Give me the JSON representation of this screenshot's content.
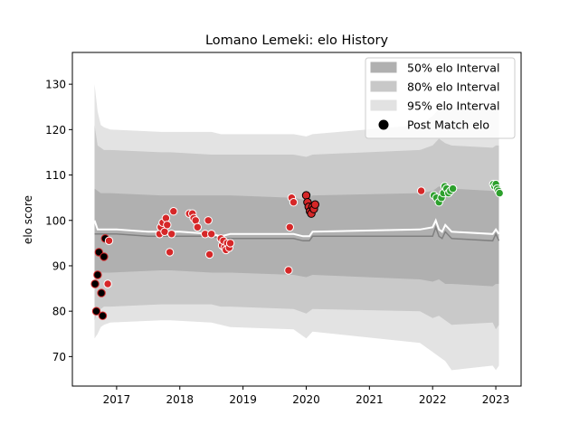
{
  "chart_data": {
    "type": "scatter",
    "title": "Lomano Lemeki: elo History",
    "xlabel": "",
    "ylabel": "elo score",
    "xlim": [
      2016.3,
      2023.4
    ],
    "ylim": [
      63.5,
      137.0
    ],
    "xticks": [
      {
        "value": 2017.0,
        "label": "2017"
      },
      {
        "value": 2018.0,
        "label": "2018"
      },
      {
        "value": 2019.0,
        "label": "2019"
      },
      {
        "value": 2020.0,
        "label": "2020"
      },
      {
        "value": 2021.0,
        "label": "2021"
      },
      {
        "value": 2022.0,
        "label": "2022"
      },
      {
        "value": 2023.0,
        "label": "2023"
      }
    ],
    "yticks": [
      {
        "value": 70,
        "label": "70"
      },
      {
        "value": 80,
        "label": "80"
      },
      {
        "value": 90,
        "label": "90"
      },
      {
        "value": 100,
        "label": "100"
      },
      {
        "value": 110,
        "label": "110"
      },
      {
        "value": 120,
        "label": "120"
      },
      {
        "value": 130,
        "label": "130"
      }
    ],
    "grid": false,
    "legend_position": "top-right",
    "legend": [
      {
        "label": "50% elo Interval",
        "kind": "patch",
        "color": "#b0b0b0"
      },
      {
        "label": "80% elo Interval",
        "kind": "patch",
        "color": "#c8c8c8"
      },
      {
        "label": "95% elo Interval",
        "kind": "patch",
        "color": "#e2e2e2"
      },
      {
        "label": "Post Match elo",
        "kind": "marker",
        "color": "#000000"
      }
    ],
    "colors": {
      "band50": "#b0b0b0",
      "band80": "#c9c9c9",
      "band95": "#e3e3e3",
      "mean_line": "#ffffff",
      "median_line": "#808080",
      "marker_edge": "#ffffff"
    },
    "series": [
      {
        "kind": "band",
        "level": "95%",
        "x": [
          2016.65,
          2016.7,
          2016.75,
          2016.8,
          2016.9,
          2017.7,
          2017.85,
          2018.5,
          2018.65,
          2018.8,
          2019.8,
          2020.0,
          2020.1,
          2021.8,
          2022.0,
          2022.1,
          2022.2,
          2022.3,
          2022.95,
          2023.0,
          2023.05
        ],
        "lower": [
          74.0,
          75.0,
          76.5,
          77.0,
          77.5,
          78.0,
          78.0,
          77.5,
          77.0,
          76.5,
          76.0,
          74.0,
          75.5,
          73.0,
          71.0,
          70.0,
          69.0,
          67.0,
          68.0,
          67.0,
          68.0
        ],
        "upper": [
          130.0,
          124.0,
          121.0,
          120.5,
          120.0,
          119.5,
          119.5,
          119.5,
          119.0,
          119.0,
          119.0,
          118.5,
          119.0,
          121.0,
          123.0,
          124.5,
          125.0,
          125.0,
          124.5,
          125.0,
          125.0
        ]
      },
      {
        "kind": "band",
        "level": "80%",
        "x": [
          2016.65,
          2016.7,
          2016.75,
          2016.8,
          2016.9,
          2017.7,
          2017.85,
          2018.5,
          2018.65,
          2018.8,
          2019.8,
          2020.0,
          2020.1,
          2021.8,
          2022.0,
          2022.1,
          2022.2,
          2022.3,
          2022.95,
          2023.0,
          2023.05
        ],
        "lower": [
          78.0,
          80.0,
          80.5,
          81.0,
          81.0,
          81.5,
          81.5,
          81.5,
          81.0,
          81.0,
          80.5,
          79.5,
          80.5,
          80.0,
          78.5,
          79.0,
          78.0,
          77.0,
          77.5,
          76.0,
          77.0
        ],
        "upper": [
          121.0,
          116.5,
          116.0,
          115.5,
          115.5,
          115.0,
          115.0,
          114.5,
          114.5,
          114.5,
          114.5,
          114.0,
          114.5,
          115.5,
          116.5,
          118.0,
          117.0,
          116.5,
          116.0,
          116.5,
          116.5
        ]
      },
      {
        "kind": "band",
        "level": "50%",
        "x": [
          2016.65,
          2016.7,
          2016.75,
          2016.8,
          2016.9,
          2017.7,
          2017.85,
          2018.5,
          2018.65,
          2018.8,
          2019.8,
          2020.0,
          2020.1,
          2021.8,
          2022.0,
          2022.1,
          2022.2,
          2022.3,
          2022.95,
          2023.0,
          2023.05
        ],
        "lower": [
          88.0,
          88.5,
          88.5,
          88.5,
          88.5,
          89.0,
          89.0,
          88.5,
          88.5,
          88.5,
          88.0,
          87.5,
          88.0,
          87.0,
          86.5,
          87.0,
          86.0,
          86.0,
          85.5,
          86.0,
          86.0
        ],
        "upper": [
          107.0,
          106.5,
          106.0,
          106.0,
          106.0,
          105.5,
          105.5,
          105.5,
          105.5,
          105.5,
          105.0,
          104.5,
          105.5,
          106.0,
          106.5,
          107.5,
          107.0,
          107.0,
          106.5,
          107.0,
          107.0
        ]
      },
      {
        "kind": "line",
        "role": "mean",
        "x": [
          2016.65,
          2016.7,
          2017.0,
          2017.5,
          2017.7,
          2017.85,
          2018.0,
          2018.5,
          2018.65,
          2018.8,
          2019.8,
          2019.95,
          2020.05,
          2020.1,
          2021.8,
          2022.0,
          2022.05,
          2022.1,
          2022.15,
          2022.2,
          2022.3,
          2022.95,
          2023.0,
          2023.05
        ],
        "y": [
          100.0,
          98.0,
          98.0,
          97.5,
          97.5,
          97.5,
          97.5,
          97.0,
          96.5,
          97.0,
          97.0,
          96.5,
          96.5,
          97.5,
          98.0,
          98.5,
          100.0,
          98.0,
          97.5,
          99.0,
          97.5,
          97.0,
          98.0,
          97.0
        ]
      },
      {
        "kind": "line",
        "role": "median",
        "x": [
          2016.65,
          2016.7,
          2017.0,
          2017.5,
          2017.7,
          2017.85,
          2018.0,
          2018.5,
          2018.65,
          2018.8,
          2019.8,
          2019.95,
          2020.05,
          2020.1,
          2021.8,
          2022.0,
          2022.05,
          2022.1,
          2022.15,
          2022.2,
          2022.3,
          2022.95,
          2023.0,
          2023.05
        ],
        "y": [
          97.0,
          97.0,
          97.0,
          96.5,
          96.5,
          96.5,
          96.5,
          96.5,
          96.0,
          96.0,
          96.0,
          95.5,
          95.5,
          96.5,
          96.5,
          96.5,
          98.5,
          96.5,
          96.0,
          97.5,
          96.0,
          95.5,
          97.0,
          95.5
        ]
      },
      {
        "kind": "points",
        "name": "Post Match elo",
        "points": [
          {
            "x": 2016.66,
            "y": 86.0,
            "color": "#000000",
            "edge": "#d62728"
          },
          {
            "x": 2016.68,
            "y": 80.0,
            "color": "#000000",
            "edge": "#d62728"
          },
          {
            "x": 2016.7,
            "y": 88.0,
            "color": "#000000",
            "edge": "#d62728"
          },
          {
            "x": 2016.72,
            "y": 93.0,
            "color": "#000000",
            "edge": "#d62728"
          },
          {
            "x": 2016.76,
            "y": 84.0,
            "color": "#000000",
            "edge": "#d62728"
          },
          {
            "x": 2016.78,
            "y": 79.0,
            "color": "#000000",
            "edge": "#d62728"
          },
          {
            "x": 2016.8,
            "y": 92.0,
            "color": "#000000",
            "edge": "#d62728"
          },
          {
            "x": 2016.82,
            "y": 96.0,
            "color": "#000000",
            "edge": "#d62728"
          },
          {
            "x": 2016.86,
            "y": 86.0,
            "color": "#d62728",
            "edge": "#ffffff"
          },
          {
            "x": 2016.88,
            "y": 95.5,
            "color": "#d62728",
            "edge": "#ffffff"
          },
          {
            "x": 2017.68,
            "y": 97.0,
            "color": "#d62728",
            "edge": "#ffffff"
          },
          {
            "x": 2017.7,
            "y": 98.5,
            "color": "#d62728",
            "edge": "#ffffff"
          },
          {
            "x": 2017.73,
            "y": 99.5,
            "color": "#d62728",
            "edge": "#ffffff"
          },
          {
            "x": 2017.76,
            "y": 97.5,
            "color": "#d62728",
            "edge": "#ffffff"
          },
          {
            "x": 2017.78,
            "y": 100.5,
            "color": "#d62728",
            "edge": "#ffffff"
          },
          {
            "x": 2017.8,
            "y": 99.0,
            "color": "#d62728",
            "edge": "#ffffff"
          },
          {
            "x": 2017.84,
            "y": 93.0,
            "color": "#d62728",
            "edge": "#ffffff"
          },
          {
            "x": 2017.87,
            "y": 97.0,
            "color": "#d62728",
            "edge": "#ffffff"
          },
          {
            "x": 2017.9,
            "y": 102.0,
            "color": "#d62728",
            "edge": "#ffffff"
          },
          {
            "x": 2018.15,
            "y": 101.5,
            "color": "#d62728",
            "edge": "#ffffff"
          },
          {
            "x": 2018.2,
            "y": 101.5,
            "color": "#d62728",
            "edge": "#ffffff"
          },
          {
            "x": 2018.22,
            "y": 100.5,
            "color": "#d62728",
            "edge": "#ffffff"
          },
          {
            "x": 2018.25,
            "y": 100.0,
            "color": "#d62728",
            "edge": "#ffffff"
          },
          {
            "x": 2018.28,
            "y": 98.5,
            "color": "#d62728",
            "edge": "#ffffff"
          },
          {
            "x": 2018.4,
            "y": 97.0,
            "color": "#d62728",
            "edge": "#ffffff"
          },
          {
            "x": 2018.45,
            "y": 100.0,
            "color": "#d62728",
            "edge": "#ffffff"
          },
          {
            "x": 2018.47,
            "y": 92.5,
            "color": "#d62728",
            "edge": "#ffffff"
          },
          {
            "x": 2018.5,
            "y": 97.0,
            "color": "#d62728",
            "edge": "#ffffff"
          },
          {
            "x": 2018.65,
            "y": 96.0,
            "color": "#d62728",
            "edge": "#ffffff"
          },
          {
            "x": 2018.67,
            "y": 94.5,
            "color": "#d62728",
            "edge": "#ffffff"
          },
          {
            "x": 2018.69,
            "y": 95.5,
            "color": "#d62728",
            "edge": "#ffffff"
          },
          {
            "x": 2018.71,
            "y": 94.0,
            "color": "#d62728",
            "edge": "#ffffff"
          },
          {
            "x": 2018.73,
            "y": 93.5,
            "color": "#d62728",
            "edge": "#ffffff"
          },
          {
            "x": 2018.75,
            "y": 95.0,
            "color": "#d62728",
            "edge": "#ffffff"
          },
          {
            "x": 2018.78,
            "y": 94.0,
            "color": "#d62728",
            "edge": "#ffffff"
          },
          {
            "x": 2018.8,
            "y": 95.0,
            "color": "#d62728",
            "edge": "#ffffff"
          },
          {
            "x": 2019.72,
            "y": 89.0,
            "color": "#d62728",
            "edge": "#ffffff"
          },
          {
            "x": 2019.74,
            "y": 98.5,
            "color": "#d62728",
            "edge": "#ffffff"
          },
          {
            "x": 2019.77,
            "y": 105.0,
            "color": "#d62728",
            "edge": "#ffffff"
          },
          {
            "x": 2019.8,
            "y": 104.0,
            "color": "#d62728",
            "edge": "#ffffff"
          },
          {
            "x": 2020.0,
            "y": 105.5,
            "color": "#d62728",
            "edge": "#000000"
          },
          {
            "x": 2020.02,
            "y": 104.0,
            "color": "#d62728",
            "edge": "#000000"
          },
          {
            "x": 2020.04,
            "y": 103.0,
            "color": "#d62728",
            "edge": "#000000"
          },
          {
            "x": 2020.06,
            "y": 102.0,
            "color": "#d62728",
            "edge": "#000000"
          },
          {
            "x": 2020.08,
            "y": 101.5,
            "color": "#d62728",
            "edge": "#000000"
          },
          {
            "x": 2020.1,
            "y": 103.0,
            "color": "#d62728",
            "edge": "#000000"
          },
          {
            "x": 2020.12,
            "y": 102.5,
            "color": "#d62728",
            "edge": "#000000"
          },
          {
            "x": 2020.14,
            "y": 103.5,
            "color": "#d62728",
            "edge": "#000000"
          },
          {
            "x": 2021.82,
            "y": 106.5,
            "color": "#d62728",
            "edge": "#ffffff"
          },
          {
            "x": 2022.02,
            "y": 105.5,
            "color": "#2ca02c",
            "edge": "#ffffff"
          },
          {
            "x": 2022.06,
            "y": 105.0,
            "color": "#2ca02c",
            "edge": "#ffffff"
          },
          {
            "x": 2022.1,
            "y": 104.0,
            "color": "#2ca02c",
            "edge": "#ffffff"
          },
          {
            "x": 2022.14,
            "y": 105.0,
            "color": "#2ca02c",
            "edge": "#ffffff"
          },
          {
            "x": 2022.17,
            "y": 106.0,
            "color": "#2ca02c",
            "edge": "#ffffff"
          },
          {
            "x": 2022.19,
            "y": 107.5,
            "color": "#2ca02c",
            "edge": "#ffffff"
          },
          {
            "x": 2022.22,
            "y": 107.0,
            "color": "#2ca02c",
            "edge": "#ffffff"
          },
          {
            "x": 2022.25,
            "y": 106.0,
            "color": "#2ca02c",
            "edge": "#ffffff"
          },
          {
            "x": 2022.28,
            "y": 106.5,
            "color": "#2ca02c",
            "edge": "#ffffff"
          },
          {
            "x": 2022.32,
            "y": 107.0,
            "color": "#2ca02c",
            "edge": "#ffffff"
          },
          {
            "x": 2022.96,
            "y": 108.0,
            "color": "#2ca02c",
            "edge": "#ffffff"
          },
          {
            "x": 2022.98,
            "y": 107.5,
            "color": "#2ca02c",
            "edge": "#ffffff"
          },
          {
            "x": 2023.0,
            "y": 108.0,
            "color": "#2ca02c",
            "edge": "#ffffff"
          },
          {
            "x": 2023.02,
            "y": 107.0,
            "color": "#2ca02c",
            "edge": "#ffffff"
          },
          {
            "x": 2023.04,
            "y": 106.5,
            "color": "#2ca02c",
            "edge": "#ffffff"
          },
          {
            "x": 2023.06,
            "y": 106.0,
            "color": "#2ca02c",
            "edge": "#ffffff"
          }
        ]
      }
    ]
  }
}
